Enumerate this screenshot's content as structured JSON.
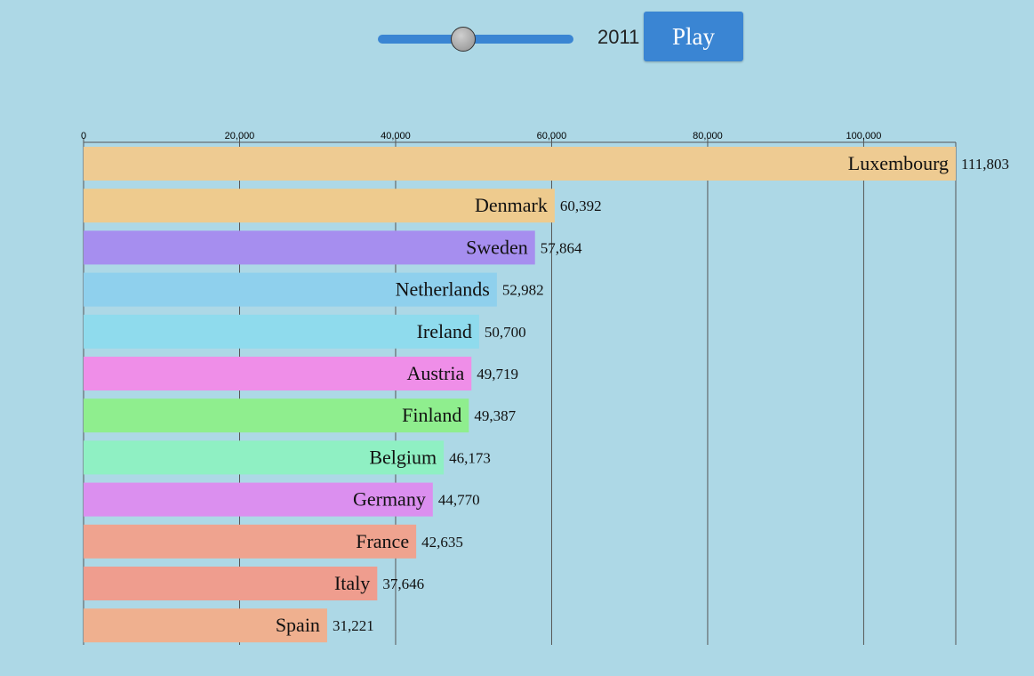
{
  "controls": {
    "slider": {
      "value": 2011
    },
    "year_label": "2011",
    "play_label": "Play"
  },
  "colors": {
    "background": "#add8e6",
    "control_accent": "#3a85d3"
  },
  "chart_data": {
    "type": "bar",
    "orientation": "horizontal",
    "xlim": [
      0,
      111803
    ],
    "x_ticks": [
      0,
      20000,
      40000,
      60000,
      80000,
      100000
    ],
    "x_tick_labels": [
      "0",
      "20,000",
      "40,000",
      "60,000",
      "80,000",
      "100,000"
    ],
    "grid": true,
    "categories": [
      "Luxembourg",
      "Denmark",
      "Sweden",
      "Netherlands",
      "Ireland",
      "Austria",
      "Finland",
      "Belgium",
      "Germany",
      "France",
      "Italy",
      "Spain"
    ],
    "values": [
      111803,
      60392,
      57864,
      52982,
      50700,
      49719,
      49387,
      46173,
      44770,
      42635,
      37646,
      31221
    ],
    "value_labels": [
      "111,803",
      "60,392",
      "57,864",
      "52,982",
      "50,700",
      "49,719",
      "49,387",
      "46,173",
      "44,770",
      "42,635",
      "37,646",
      "31,221"
    ],
    "bar_colors": [
      "#eecb92",
      "#eecb8e",
      "#a68eef",
      "#8fd0ed",
      "#8fdbed",
      "#ef8ee8",
      "#8fee8e",
      "#8ff0c3",
      "#db8fef",
      "#efa38f",
      "#ef9d8e",
      "#efb08f"
    ]
  }
}
